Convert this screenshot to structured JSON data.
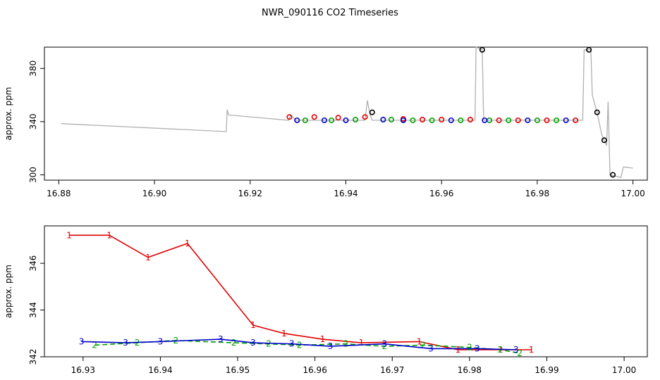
{
  "title": "NWR_090116  CO2 Timeseries",
  "chart_data": [
    {
      "type": "line",
      "ylabel": "approx. ppm",
      "xlim": [
        16.877,
        17.003
      ],
      "ylim": [
        296,
        396
      ],
      "xticks": [
        16.88,
        16.9,
        16.92,
        16.94,
        16.96,
        16.98,
        17.0
      ],
      "xtick_labels": [
        "16.88",
        "16.90",
        "16.92",
        "16.94",
        "16.96",
        "16.98",
        "17.00"
      ],
      "yticks": [
        300,
        340,
        380
      ],
      "ytick_labels": [
        "300",
        "340",
        "380"
      ],
      "raw_trace_color": "#b0b0b0",
      "raw_trace": [
        [
          16.8805,
          338.5
        ],
        [
          16.915,
          332.5
        ],
        [
          16.9152,
          349
        ],
        [
          16.9155,
          345
        ],
        [
          16.928,
          341
        ],
        [
          16.9285,
          345
        ],
        [
          16.9295,
          341
        ],
        [
          16.9375,
          341
        ],
        [
          16.944,
          341
        ],
        [
          16.9445,
          356
        ],
        [
          16.945,
          346
        ],
        [
          16.9455,
          341
        ],
        [
          16.967,
          341
        ],
        [
          16.9672,
          396
        ],
        [
          16.9685,
          394
        ],
        [
          16.9688,
          341
        ],
        [
          16.9895,
          341
        ],
        [
          16.9898,
          394
        ],
        [
          16.9912,
          394
        ],
        [
          16.9915,
          360
        ],
        [
          16.9925,
          347
        ],
        [
          16.9935,
          330
        ],
        [
          16.9945,
          322
        ],
        [
          16.9948,
          355
        ],
        [
          16.9952,
          300
        ],
        [
          16.9975,
          298
        ],
        [
          16.998,
          306
        ],
        [
          17.0,
          305
        ]
      ],
      "marker_series": [
        {
          "color": "#e00000",
          "points": [
            [
              16.9282,
              343.5
            ],
            [
              16.9334,
              343.5
            ],
            [
              16.9384,
              343.0
            ],
            [
              16.944,
              343.5
            ],
            [
              16.952,
              342.0
            ],
            [
              16.956,
              341.5
            ],
            [
              16.96,
              341.5
            ],
            [
              16.966,
              341.5
            ],
            [
              16.972,
              341.0
            ],
            [
              16.976,
              341.0
            ],
            [
              16.982,
              341.0
            ],
            [
              16.988,
              341.0
            ]
          ]
        },
        {
          "color": "#00a000",
          "points": [
            [
              16.9315,
              341.0
            ],
            [
              16.937,
              341.0
            ],
            [
              16.942,
              341.5
            ],
            [
              16.9495,
              341.5
            ],
            [
              16.954,
              341.0
            ],
            [
              16.958,
              341.0
            ],
            [
              16.964,
              341.0
            ],
            [
              16.97,
              341.0
            ],
            [
              16.974,
              341.0
            ],
            [
              16.98,
              341.0
            ],
            [
              16.984,
              341.0
            ]
          ]
        },
        {
          "color": "#0000cc",
          "points": [
            [
              16.9298,
              341.0
            ],
            [
              16.9355,
              341.0
            ],
            [
              16.94,
              341.0
            ],
            [
              16.9478,
              341.5
            ],
            [
              16.952,
              341.0
            ],
            [
              16.962,
              341.0
            ],
            [
              16.969,
              341.0
            ],
            [
              16.978,
              341.0
            ],
            [
              16.986,
              341.0
            ]
          ]
        },
        {
          "color": "#000000",
          "points": [
            [
              16.9455,
              347.0
            ],
            [
              16.9685,
              394.0
            ],
            [
              16.9908,
              394.0
            ],
            [
              16.9925,
              347.0
            ],
            [
              16.994,
              326.0
            ],
            [
              16.9958,
              300.0
            ]
          ]
        }
      ]
    },
    {
      "type": "line",
      "ylabel": "approx. ppm",
      "xlim": [
        16.925,
        17.003
      ],
      "ylim": [
        342,
        347.6
      ],
      "xticks": [
        16.93,
        16.94,
        16.95,
        16.96,
        16.97,
        16.98,
        16.99,
        17.0
      ],
      "xtick_labels": [
        "16.93",
        "16.94",
        "16.95",
        "16.96",
        "16.97",
        "16.98",
        "16.99",
        "17.00"
      ],
      "yticks": [
        342,
        344,
        346
      ],
      "ytick_labels": [
        "342",
        "344",
        "346"
      ],
      "series": [
        {
          "label": "1",
          "color": "#e00000",
          "dashed": false,
          "x": [
            16.9282,
            16.9334,
            16.9384,
            16.9435,
            16.952,
            16.956,
            16.961,
            16.966,
            16.9735,
            16.9785,
            16.984,
            16.988
          ],
          "y": [
            347.2,
            347.2,
            346.25,
            346.85,
            343.35,
            343.0,
            342.75,
            342.6,
            342.65,
            342.3,
            342.3,
            342.3
          ]
        },
        {
          "label": "2",
          "color": "#00a000",
          "dashed": true,
          "x": [
            16.9315,
            16.937,
            16.942,
            16.9495,
            16.954,
            16.958,
            16.964,
            16.969,
            16.974,
            16.98,
            16.984,
            16.9865
          ],
          "y": [
            342.5,
            342.6,
            342.7,
            342.6,
            342.55,
            342.5,
            342.55,
            342.45,
            342.5,
            342.4,
            342.3,
            342.15
          ]
        },
        {
          "label": "3",
          "color": "#0000cc",
          "dashed": false,
          "x": [
            16.9298,
            16.9355,
            16.94,
            16.9478,
            16.952,
            16.957,
            16.962,
            16.969,
            16.975,
            16.981,
            16.986
          ],
          "y": [
            342.65,
            342.6,
            342.65,
            342.75,
            342.6,
            342.55,
            342.45,
            342.55,
            342.35,
            342.35,
            342.3
          ]
        }
      ]
    }
  ]
}
